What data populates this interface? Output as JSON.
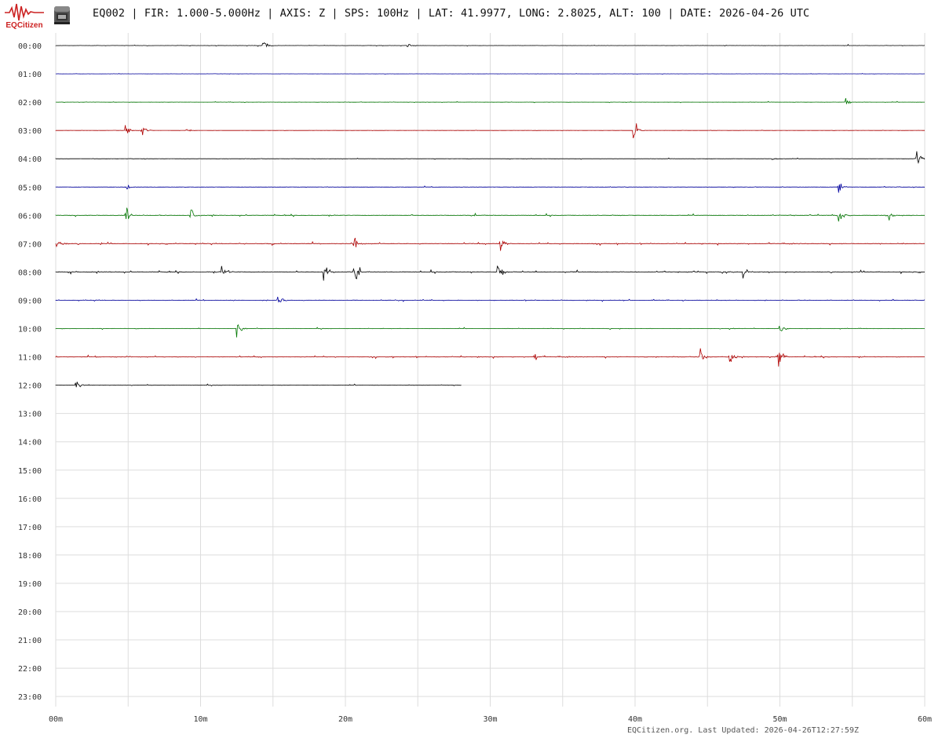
{
  "header": {
    "brand": "EQCitizen",
    "title": "EQ002 | FIR: 1.000-5.000Hz | AXIS: Z | SPS: 100Hz | LAT: 41.9977, LONG: 2.8025, ALT: 100 | DATE: 2026-04-26 UTC"
  },
  "footer": {
    "updated": "EQCitizen.org. Last Updated: 2026-04-26T12:27:59Z"
  },
  "colors": {
    "trace_cycle": [
      "#000000",
      "#0000a0",
      "#007700",
      "#b00000"
    ],
    "grid": "#dddddd",
    "logo": "#cc2222"
  },
  "chart_data": {
    "type": "line",
    "subtype": "helicorder",
    "x_unit": "minutes",
    "xlim": [
      0,
      60
    ],
    "x_ticks": [
      {
        "value": 0,
        "label": "00m"
      },
      {
        "value": 10,
        "label": "10m"
      },
      {
        "value": 20,
        "label": "20m"
      },
      {
        "value": 30,
        "label": "30m"
      },
      {
        "value": 40,
        "label": "40m"
      },
      {
        "value": 50,
        "label": "50m"
      },
      {
        "value": 60,
        "label": "60m"
      }
    ],
    "rows": [
      "00:00",
      "01:00",
      "02:00",
      "03:00",
      "04:00",
      "05:00",
      "06:00",
      "07:00",
      "08:00",
      "09:00",
      "10:00",
      "11:00",
      "12:00",
      "13:00",
      "14:00",
      "15:00",
      "16:00",
      "17:00",
      "18:00",
      "19:00",
      "20:00",
      "21:00",
      "22:00",
      "23:00"
    ],
    "recorded_until": {
      "row": "12:00",
      "minute": 28
    },
    "grid": true,
    "events": [
      {
        "row": "00:00",
        "minute": 14.3,
        "amplitude": 0.9
      },
      {
        "row": "00:00",
        "minute": 24.3,
        "amplitude": 0.2
      },
      {
        "row": "02:00",
        "minute": 54.5,
        "amplitude": 0.8
      },
      {
        "row": "03:00",
        "minute": 4.8,
        "amplitude": 0.7
      },
      {
        "row": "03:00",
        "minute": 5.9,
        "amplitude": 0.9
      },
      {
        "row": "03:00",
        "minute": 9.0,
        "amplitude": 0.3
      },
      {
        "row": "03:00",
        "minute": 39.9,
        "amplitude": 1.6
      },
      {
        "row": "04:00",
        "minute": 49.5,
        "amplitude": 0.4
      },
      {
        "row": "04:00",
        "minute": 59.4,
        "amplitude": 1.2
      },
      {
        "row": "05:00",
        "minute": 4.9,
        "amplitude": 0.6
      },
      {
        "row": "05:00",
        "minute": 54.0,
        "amplitude": 0.8
      },
      {
        "row": "06:00",
        "minute": 4.8,
        "amplitude": 1.3
      },
      {
        "row": "06:00",
        "minute": 9.3,
        "amplitude": 0.8
      },
      {
        "row": "06:00",
        "minute": 54.0,
        "amplitude": 1.5
      },
      {
        "row": "06:00",
        "minute": 57.5,
        "amplitude": 0.6
      },
      {
        "row": "07:00",
        "minute": 0.1,
        "amplitude": 0.8
      },
      {
        "row": "07:00",
        "minute": 20.6,
        "amplitude": 0.8
      },
      {
        "row": "07:00",
        "minute": 30.7,
        "amplitude": 0.9
      },
      {
        "row": "08:00",
        "minute": 11.5,
        "amplitude": 0.8
      },
      {
        "row": "08:00",
        "minute": 18.5,
        "amplitude": 1.4
      },
      {
        "row": "08:00",
        "minute": 20.6,
        "amplitude": 1.8
      },
      {
        "row": "08:00",
        "minute": 30.5,
        "amplitude": 1.5
      },
      {
        "row": "08:00",
        "minute": 47.5,
        "amplitude": 0.8
      },
      {
        "row": "09:00",
        "minute": 15.3,
        "amplitude": 0.9
      },
      {
        "row": "10:00",
        "minute": 12.5,
        "amplitude": 1.2
      },
      {
        "row": "10:00",
        "minute": 50.0,
        "amplitude": 0.9
      },
      {
        "row": "11:00",
        "minute": 33.0,
        "amplitude": 0.9
      },
      {
        "row": "11:00",
        "minute": 44.5,
        "amplitude": 1.1
      },
      {
        "row": "11:00",
        "minute": 46.5,
        "amplitude": 1.0
      },
      {
        "row": "11:00",
        "minute": 49.9,
        "amplitude": 1.6
      },
      {
        "row": "12:00",
        "minute": 1.4,
        "amplitude": 0.6
      }
    ]
  }
}
